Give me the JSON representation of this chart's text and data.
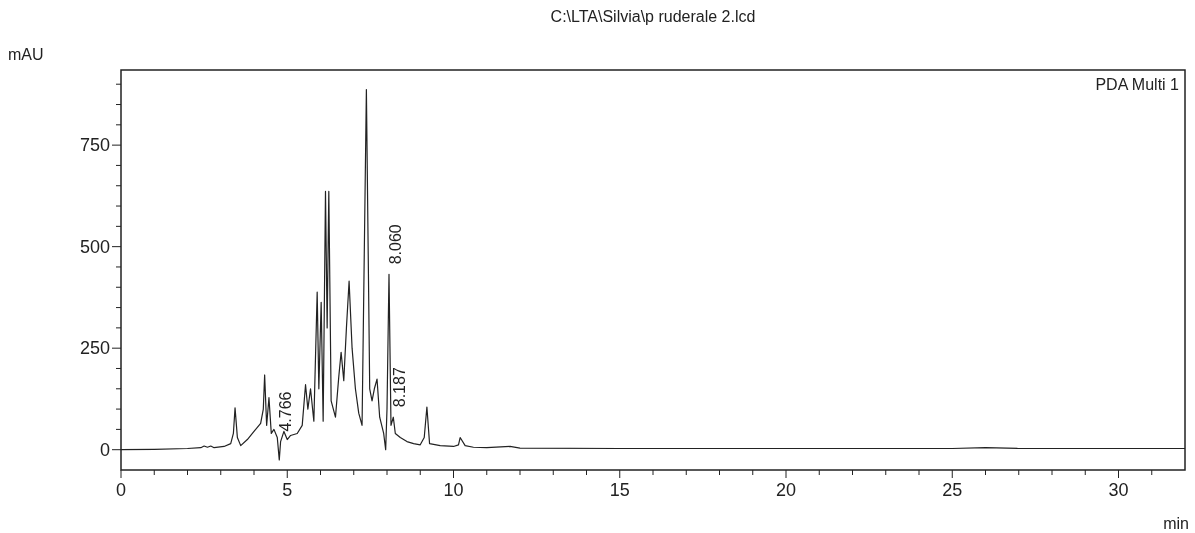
{
  "chart_data": {
    "type": "line",
    "title": "C:\\LTA\\Silvia\\p ruderale 2.lcd",
    "xlabel": "min",
    "ylabel": "mAU",
    "xlim": [
      0,
      32
    ],
    "ylim": [
      -50,
      935
    ],
    "xticks": [
      0,
      {
        "value": 1,
        "label": null
      },
      {
        "value": 2,
        "label": null
      },
      {
        "value": 3,
        "label": null
      },
      {
        "value": 4,
        "label": null
      },
      5,
      {
        "value": 6,
        "label": null
      },
      {
        "value": 7,
        "label": null
      },
      {
        "value": 8,
        "label": null
      },
      {
        "value": 9,
        "label": null
      },
      10,
      {
        "value": 11,
        "label": null
      },
      {
        "value": 12,
        "label": null
      },
      {
        "value": 13,
        "label": null
      },
      {
        "value": 14,
        "label": null
      },
      15,
      {
        "value": 16,
        "label": null
      },
      {
        "value": 17,
        "label": null
      },
      {
        "value": 18,
        "label": null
      },
      {
        "value": 19,
        "label": null
      },
      20,
      {
        "value": 21,
        "label": null
      },
      {
        "value": 22,
        "label": null
      },
      {
        "value": 23,
        "label": null
      },
      {
        "value": 24,
        "label": null
      },
      25,
      {
        "value": 26,
        "label": null
      },
      {
        "value": 27,
        "label": null
      },
      {
        "value": 28,
        "label": null
      },
      {
        "value": 29,
        "label": null
      },
      30,
      {
        "value": 31,
        "label": null
      }
    ],
    "yticks": [
      0,
      {
        "value": 50,
        "label": null
      },
      {
        "value": 100,
        "label": null
      },
      {
        "value": 150,
        "label": null
      },
      {
        "value": 200,
        "label": null
      },
      250,
      {
        "value": 300,
        "label": null
      },
      {
        "value": 350,
        "label": null
      },
      {
        "value": 400,
        "label": null
      },
      {
        "value": 450,
        "label": null
      },
      500,
      {
        "value": 550,
        "label": null
      },
      {
        "value": 600,
        "label": null
      },
      {
        "value": 650,
        "label": null
      },
      {
        "value": 700,
        "label": null
      },
      750,
      {
        "value": 800,
        "label": null
      },
      {
        "value": 850,
        "label": null
      },
      {
        "value": 900,
        "label": null
      }
    ],
    "annotations": [
      "PDA Multi 1",
      {
        "text": "4.766",
        "x": 4.766,
        "y": 20
      },
      {
        "text": "8.060",
        "x": 8.06,
        "y": 432
      },
      {
        "text": "8.187",
        "x": 8.187,
        "y": 80
      }
    ],
    "series": [
      {
        "color": "#222222",
        "x": [
          0,
          1,
          2,
          2.4,
          2.5,
          2.6,
          2.7,
          2.8,
          3.1,
          3.3,
          3.38,
          3.43,
          3.5,
          3.6,
          3.8,
          4.0,
          4.2,
          4.28,
          4.32,
          4.38,
          4.45,
          4.52,
          4.6,
          4.7,
          4.76,
          4.8,
          4.9,
          5.0,
          5.1,
          5.3,
          5.45,
          5.55,
          5.62,
          5.7,
          5.8,
          5.9,
          5.95,
          6.02,
          6.08,
          6.15,
          6.2,
          6.25,
          6.32,
          6.45,
          6.55,
          6.62,
          6.7,
          6.78,
          6.86,
          6.95,
          7.05,
          7.15,
          7.25,
          7.38,
          7.48,
          7.55,
          7.62,
          7.7,
          7.78,
          7.9,
          7.96,
          8.0,
          8.06,
          8.12,
          8.19,
          8.25,
          8.4,
          8.6,
          8.8,
          9.0,
          9.12,
          9.2,
          9.28,
          9.6,
          10.0,
          10.15,
          10.2,
          10.35,
          10.6,
          11.0,
          11.7,
          12,
          15,
          20,
          25,
          26,
          27,
          32
        ],
        "values": [
          0,
          1,
          3,
          5,
          9,
          6,
          9,
          5,
          8,
          15,
          40,
          103,
          30,
          10,
          25,
          45,
          65,
          100,
          184,
          60,
          128,
          40,
          50,
          30,
          -25,
          20,
          45,
          25,
          35,
          40,
          60,
          160,
          100,
          150,
          70,
          388,
          150,
          363,
          70,
          636,
          300,
          636,
          120,
          80,
          180,
          240,
          170,
          300,
          415,
          250,
          150,
          90,
          60,
          887,
          150,
          120,
          150,
          174,
          80,
          40,
          0,
          100,
          432,
          60,
          80,
          40,
          30,
          20,
          15,
          12,
          30,
          105,
          15,
          10,
          8,
          12,
          30,
          10,
          6,
          5,
          8,
          4,
          3,
          3,
          3,
          5,
          3,
          3
        ]
      }
    ]
  }
}
